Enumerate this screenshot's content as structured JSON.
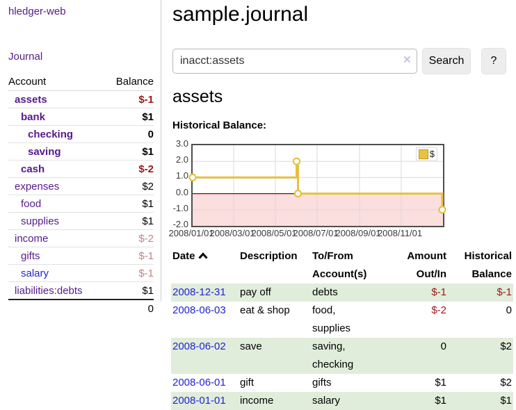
{
  "app": {
    "title": "hledger-web"
  },
  "sidebar": {
    "journal_link": "Journal",
    "accounts": {
      "headers": {
        "account": "Account",
        "balance": "Balance"
      },
      "rows": [
        {
          "name": "assets",
          "indent": 1,
          "bold": true,
          "name_color": "purple",
          "balance": "$-1",
          "balance_tone": "negative"
        },
        {
          "name": "bank",
          "indent": 2,
          "bold": true,
          "name_color": "purple",
          "balance": "$1",
          "balance_tone": "normal"
        },
        {
          "name": "checking",
          "indent": 3,
          "bold": true,
          "name_color": "purple",
          "balance": "0",
          "balance_tone": "normal"
        },
        {
          "name": "saving",
          "indent": 3,
          "bold": true,
          "name_color": "purple",
          "balance": "$1",
          "balance_tone": "normal"
        },
        {
          "name": "cash",
          "indent": 2,
          "bold": true,
          "name_color": "purple",
          "balance": "$-2",
          "balance_tone": "negative"
        },
        {
          "name": "expenses",
          "indent": 1,
          "bold": false,
          "name_color": "purple",
          "balance": "$2",
          "balance_tone": "normal"
        },
        {
          "name": "food",
          "indent": 2,
          "bold": false,
          "name_color": "purple",
          "balance": "$1",
          "balance_tone": "normal"
        },
        {
          "name": "supplies",
          "indent": 2,
          "bold": false,
          "name_color": "purple",
          "balance": "$1",
          "balance_tone": "normal"
        },
        {
          "name": "income",
          "indent": 1,
          "bold": false,
          "name_color": "purple",
          "balance": "$-2",
          "balance_tone": "negative-muted"
        },
        {
          "name": "gifts",
          "indent": 2,
          "bold": false,
          "name_color": "purple",
          "balance": "$-1",
          "balance_tone": "negative-muted"
        },
        {
          "name": "salary",
          "indent": 2,
          "bold": false,
          "name_color": "blue",
          "balance": "$-1",
          "balance_tone": "negative-muted"
        },
        {
          "name": "liabilities:debts",
          "indent": 1,
          "bold": false,
          "name_color": "purple",
          "balance": "$1",
          "balance_tone": "normal"
        }
      ],
      "total": "0"
    }
  },
  "main": {
    "title": "sample.journal",
    "search": {
      "value": "inacct:assets",
      "clear_icon": "×",
      "search_button": "Search",
      "help_button": "?"
    },
    "account_heading": "assets",
    "chart_heading": "Historical Balance:"
  },
  "chart_data": {
    "type": "line",
    "title": "Historical Balance:",
    "step": true,
    "x_range": [
      "2008-01-01",
      "2009-01-01"
    ],
    "ylim": [
      -2,
      3
    ],
    "y_ticks": [
      "3.0",
      "2.0",
      "1.0",
      "0.0",
      "-1.0",
      "-2.0"
    ],
    "y_tick_values": [
      3,
      2,
      1,
      0,
      -1,
      -2
    ],
    "x_ticks": [
      {
        "date": "2008-01-01",
        "label": "2008/01/01"
      },
      {
        "date": "2008-03-01",
        "label": "2008/03/01"
      },
      {
        "date": "2008-05-01",
        "label": "2008/05/01"
      },
      {
        "date": "2008-07-01",
        "label": "2008/07/01"
      },
      {
        "date": "2008-09-01",
        "label": "2008/09/01"
      },
      {
        "date": "2008-11-01",
        "label": "2008/11/01"
      }
    ],
    "series": [
      {
        "name": "$",
        "points": [
          {
            "date": "2008-01-01",
            "value": 1
          },
          {
            "date": "2008-06-01",
            "value": 2
          },
          {
            "date": "2008-06-03",
            "value": 0
          },
          {
            "date": "2008-12-31",
            "value": -1
          }
        ]
      }
    ],
    "negative_region_shaded": true,
    "legend_position": "top-right",
    "colors": {
      "line": "#e6c041",
      "marker_fill": "#ffffff",
      "zero_line": "#8b0000",
      "negative_fill": "#fbdede",
      "grid": "#d9d9d9"
    }
  },
  "register": {
    "headers": [
      {
        "line1": "Date",
        "line2": "",
        "align": "left",
        "sortable": true
      },
      {
        "line1": "Description",
        "line2": "",
        "align": "left",
        "sortable": false
      },
      {
        "line1": "To/From",
        "line2": "Account(s)",
        "align": "left",
        "sortable": false
      },
      {
        "line1": "Amount",
        "line2": "Out/In",
        "align": "right",
        "sortable": false
      },
      {
        "line1": "Historical",
        "line2": "Balance",
        "align": "right",
        "sortable": false
      }
    ],
    "sort": "ascending",
    "rows": [
      {
        "date": "2008-12-31",
        "description": "pay off",
        "accounts": "debts",
        "amount": "$-1",
        "balance": "$-1"
      },
      {
        "date": "2008-06-03",
        "description": "eat & shop",
        "accounts": "food, supplies",
        "amount": "$-2",
        "balance": "0"
      },
      {
        "date": "2008-06-02",
        "description": "save",
        "accounts": "saving, checking",
        "amount": "0",
        "balance": "$2"
      },
      {
        "date": "2008-06-01",
        "description": "gift",
        "accounts": "gifts",
        "amount": "$1",
        "balance": "$2"
      },
      {
        "date": "2008-01-01",
        "description": "income",
        "accounts": "salary",
        "amount": "$1",
        "balance": "$1"
      }
    ]
  },
  "colors": {
    "link_purple": "#551a8b",
    "link_blue": "#2222d6",
    "negative": "#9d1616",
    "negative_muted": "#c08484",
    "row_green": "#e0edda",
    "button_bg": "#ededed"
  }
}
